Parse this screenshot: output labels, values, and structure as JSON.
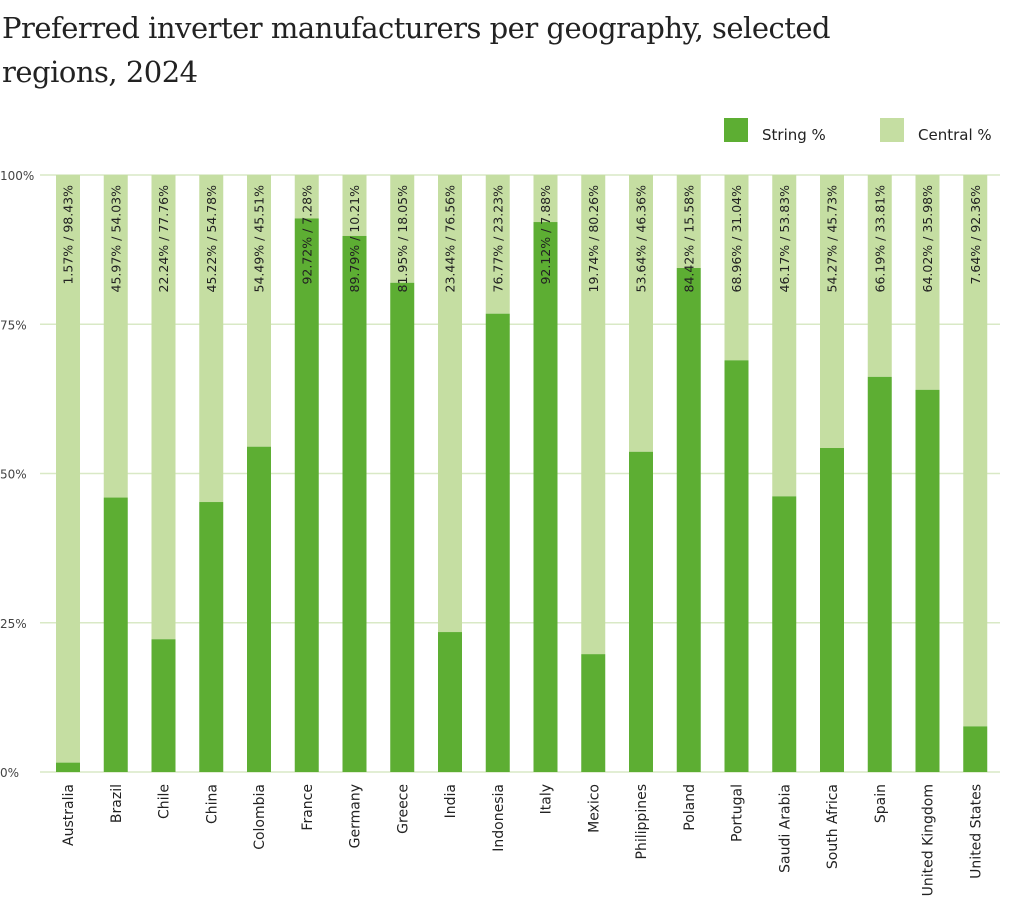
{
  "chart_data": {
    "type": "bar",
    "stacked": true,
    "title": "Preferred inverter manufacturers per geography, selected regions, 2024",
    "xlabel": "",
    "ylabel": "",
    "ylim": [
      0,
      100
    ],
    "yticks": [
      "0%",
      "25%",
      "50%",
      "75%",
      "100%"
    ],
    "ytick_values": [
      0,
      25,
      50,
      75,
      100
    ],
    "grid": true,
    "legend_position": "top-right",
    "colors": {
      "String %": "#5dae33",
      "Central %": "#c5dea2",
      "grid": "#d9e9c6"
    },
    "categories": [
      "Australia",
      "Brazil",
      "Chile",
      "China",
      "Colombia",
      "France",
      "Germany",
      "Greece",
      "India",
      "Indonesia",
      "Italy",
      "Mexico",
      "Philippines",
      "Poland",
      "Portugal",
      "Saudi Arabia",
      "South Africa",
      "Spain",
      "United Kingdom",
      "United States"
    ],
    "series": [
      {
        "name": "String %",
        "values": [
          1.57,
          45.97,
          22.24,
          45.22,
          54.49,
          92.72,
          89.79,
          81.95,
          23.44,
          76.77,
          92.12,
          19.74,
          53.64,
          84.42,
          68.96,
          46.17,
          54.27,
          66.19,
          64.02,
          7.64
        ]
      },
      {
        "name": "Central %",
        "values": [
          98.43,
          54.03,
          77.76,
          54.78,
          45.51,
          7.28,
          10.21,
          18.05,
          76.56,
          23.23,
          7.88,
          80.26,
          46.36,
          15.58,
          31.04,
          53.83,
          45.73,
          33.81,
          35.98,
          92.36
        ]
      }
    ],
    "data_labels": [
      "1.57% / 98.43%",
      "45.97% / 54.03%",
      "22.24% / 77.76%",
      "45.22% / 54.78%",
      "54.49% / 45.51%",
      "92.72% / 7.28%",
      "89.79% / 10.21%",
      "81.95% / 18.05%",
      "23.44% / 76.56%",
      "76.77% / 23.23%",
      "92.12% / 7.88%",
      "19.74% / 80.26%",
      "53.64% / 46.36%",
      "84.42% / 15.58%",
      "68.96% / 31.04%",
      "46.17% / 53.83%",
      "54.27% / 45.73%",
      "66.19% / 33.81%",
      "64.02% / 35.98%",
      "7.64% / 92.36%"
    ]
  }
}
